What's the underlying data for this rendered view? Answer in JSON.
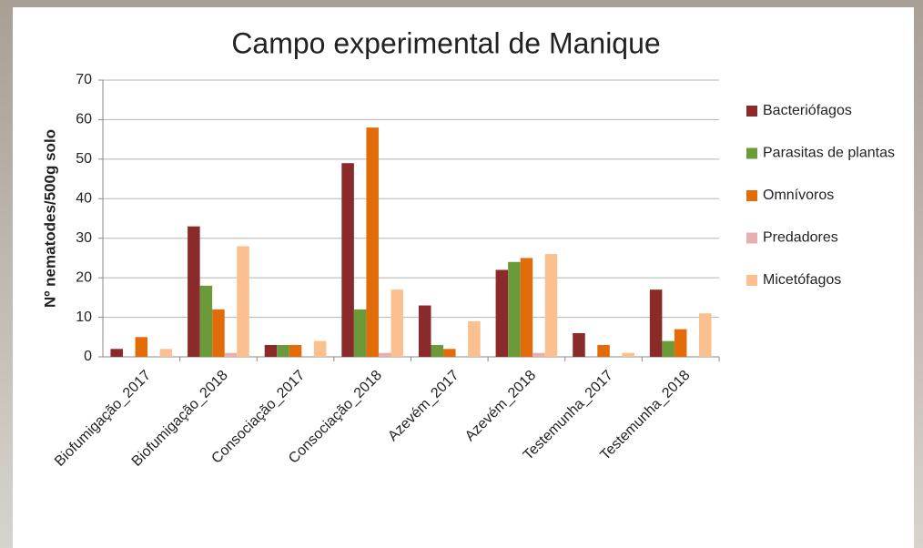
{
  "chart_data": {
    "type": "bar",
    "title": "Campo experimental de Manique",
    "y_label": "Nº nematodes/500g solo",
    "categories": [
      "Biofumigação_2017",
      "Biofumigação_2018",
      "Consociação_2017",
      "Consociação_2018",
      "Azevém_2017",
      "Azevém_2018",
      "Testemunha_2017",
      "Testemunha_2018"
    ],
    "series": [
      {
        "name": "Bacteriófagos",
        "color": "#8b2a2a",
        "values": [
          2,
          33,
          3,
          49,
          13,
          22,
          6,
          17
        ]
      },
      {
        "name": "Parasitas de plantas",
        "color": "#6a9a3a",
        "values": [
          0,
          18,
          3,
          12,
          3,
          24,
          0,
          4
        ]
      },
      {
        "name": "Omnívoros",
        "color": "#e36c0a",
        "values": [
          5,
          12,
          3,
          58,
          2,
          25,
          3,
          7
        ]
      },
      {
        "name": "Predadores",
        "color": "#e6b0b0",
        "values": [
          0,
          1,
          0,
          1,
          0,
          1,
          0,
          0
        ]
      },
      {
        "name": "Micetófagos",
        "color": "#fac08f",
        "values": [
          2,
          28,
          4,
          17,
          9,
          26,
          1,
          11
        ]
      }
    ],
    "ylim": [
      0,
      70
    ],
    "yticks": [
      0,
      10,
      20,
      30,
      40,
      50,
      60,
      70
    ],
    "grid": true,
    "legend": "right"
  }
}
